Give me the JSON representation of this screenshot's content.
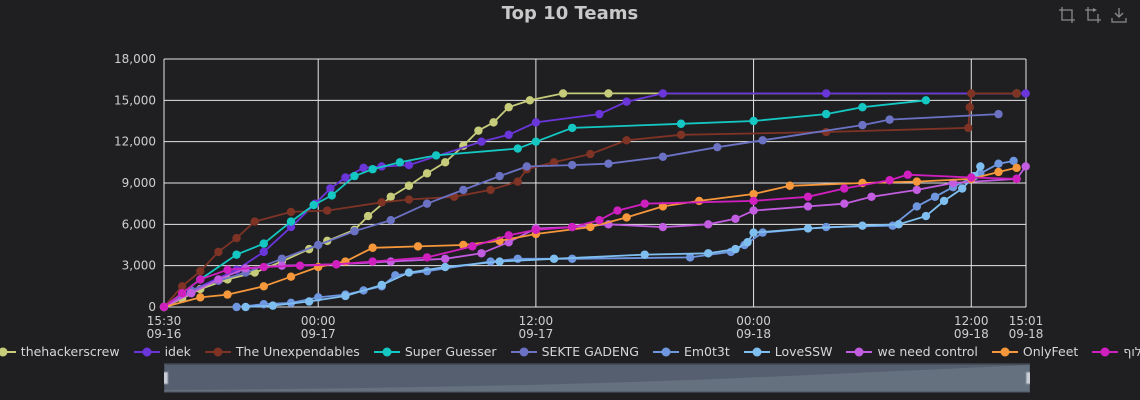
{
  "chart_data": {
    "type": "line",
    "title": "Top 10 Teams",
    "xlabel": "",
    "ylabel": "",
    "x_range": [
      "2022-09-16T15:30",
      "2022-09-18T15:01"
    ],
    "ylim": [
      0,
      18000
    ],
    "y_ticks": [
      "0",
      "3,000",
      "6,000",
      "9,000",
      "12,000",
      "15,000",
      "18,000"
    ],
    "x_ticks": [
      {
        "t": "2022-09-16T15:30",
        "time": "15:30",
        "date": "09-16"
      },
      {
        "t": "2022-09-17T00:00",
        "time": "00:00",
        "date": "09-17"
      },
      {
        "t": "2022-09-17T12:00",
        "time": "12:00",
        "date": "09-17"
      },
      {
        "t": "2022-09-18T00:00",
        "time": "00:00",
        "date": "09-18"
      },
      {
        "t": "2022-09-18T12:00",
        "time": "12:00",
        "date": "09-18"
      },
      {
        "t": "2022-09-18T15:01",
        "time": "15:01",
        "date": "09-18"
      }
    ],
    "grid": true,
    "legend_position": "bottom",
    "series": [
      {
        "name": "thehackerscrew",
        "color": "#c6cc7a",
        "points": [
          [
            "2022-09-16T15:30",
            0
          ],
          [
            "2022-09-16T16:30",
            600
          ],
          [
            "2022-09-16T17:30",
            1300
          ],
          [
            "2022-09-16T19:00",
            2000
          ],
          [
            "2022-09-16T20:30",
            2500
          ],
          [
            "2022-09-16T22:00",
            3300
          ],
          [
            "2022-09-16T23:30",
            4200
          ],
          [
            "2022-09-17T00:30",
            4800
          ],
          [
            "2022-09-17T02:00",
            5600
          ],
          [
            "2022-09-17T02:45",
            6600
          ],
          [
            "2022-09-17T04:00",
            8000
          ],
          [
            "2022-09-17T05:00",
            8800
          ],
          [
            "2022-09-17T06:00",
            9700
          ],
          [
            "2022-09-17T07:00",
            10500
          ],
          [
            "2022-09-17T08:00",
            11700
          ],
          [
            "2022-09-17T08:50",
            12800
          ],
          [
            "2022-09-17T09:40",
            13400
          ],
          [
            "2022-09-17T10:30",
            14500
          ],
          [
            "2022-09-17T11:40",
            15000
          ],
          [
            "2022-09-17T13:30",
            15500
          ],
          [
            "2022-09-17T16:00",
            15500
          ],
          [
            "2022-09-18T14:30",
            15500
          ]
        ]
      },
      {
        "name": "idek",
        "color": "#6a35d9",
        "points": [
          [
            "2022-09-16T15:30",
            0
          ],
          [
            "2022-09-16T17:00",
            1200
          ],
          [
            "2022-09-16T19:30",
            2700
          ],
          [
            "2022-09-16T21:00",
            4000
          ],
          [
            "2022-09-16T22:30",
            5800
          ],
          [
            "2022-09-16T23:50",
            7500
          ],
          [
            "2022-09-17T00:40",
            8600
          ],
          [
            "2022-09-17T01:30",
            9400
          ],
          [
            "2022-09-17T02:30",
            10100
          ],
          [
            "2022-09-17T03:30",
            10200
          ],
          [
            "2022-09-17T05:00",
            10300
          ],
          [
            "2022-09-17T09:00",
            12000
          ],
          [
            "2022-09-17T10:30",
            12500
          ],
          [
            "2022-09-17T12:00",
            13400
          ],
          [
            "2022-09-17T15:30",
            14000
          ],
          [
            "2022-09-17T17:00",
            14900
          ],
          [
            "2022-09-17T19:00",
            15500
          ],
          [
            "2022-09-18T04:00",
            15500
          ],
          [
            "2022-09-18T15:00",
            15500
          ]
        ]
      },
      {
        "name": "The Unexpendables",
        "color": "#7e3325",
        "points": [
          [
            "2022-09-16T15:30",
            0
          ],
          [
            "2022-09-16T16:30",
            1500
          ],
          [
            "2022-09-16T17:30",
            2600
          ],
          [
            "2022-09-16T18:30",
            4000
          ],
          [
            "2022-09-16T19:30",
            5000
          ],
          [
            "2022-09-16T20:30",
            6200
          ],
          [
            "2022-09-16T22:30",
            6900
          ],
          [
            "2022-09-17T00:30",
            7000
          ],
          [
            "2022-09-17T03:30",
            7600
          ],
          [
            "2022-09-17T05:00",
            7800
          ],
          [
            "2022-09-17T07:30",
            8000
          ],
          [
            "2022-09-17T09:30",
            8500
          ],
          [
            "2022-09-17T11:00",
            9100
          ],
          [
            "2022-09-17T11:30",
            10000
          ],
          [
            "2022-09-17T13:00",
            10500
          ],
          [
            "2022-09-17T15:00",
            11100
          ],
          [
            "2022-09-17T17:00",
            12100
          ],
          [
            "2022-09-17T20:00",
            12500
          ],
          [
            "2022-09-18T04:00",
            12700
          ],
          [
            "2022-09-18T11:50",
            13000
          ],
          [
            "2022-09-18T11:55",
            14500
          ],
          [
            "2022-09-18T12:00",
            15500
          ],
          [
            "2022-09-18T14:30",
            15500
          ]
        ]
      },
      {
        "name": "Super Guesser",
        "color": "#15c7c2",
        "points": [
          [
            "2022-09-16T15:30",
            0
          ],
          [
            "2022-09-16T17:30",
            2000
          ],
          [
            "2022-09-16T19:30",
            3800
          ],
          [
            "2022-09-16T21:00",
            4600
          ],
          [
            "2022-09-16T22:30",
            6200
          ],
          [
            "2022-09-16T23:45",
            7400
          ],
          [
            "2022-09-17T00:45",
            8100
          ],
          [
            "2022-09-17T02:00",
            9500
          ],
          [
            "2022-09-17T03:00",
            10000
          ],
          [
            "2022-09-17T04:30",
            10500
          ],
          [
            "2022-09-17T06:30",
            11000
          ],
          [
            "2022-09-17T11:00",
            11500
          ],
          [
            "2022-09-17T12:00",
            12000
          ],
          [
            "2022-09-17T14:00",
            13000
          ],
          [
            "2022-09-17T20:00",
            13300
          ],
          [
            "2022-09-18T00:00",
            13500
          ],
          [
            "2022-09-18T04:00",
            14000
          ],
          [
            "2022-09-18T06:00",
            14500
          ],
          [
            "2022-09-18T09:30",
            15000
          ]
        ]
      },
      {
        "name": "SEKTE GADENG",
        "color": "#6b72c4",
        "points": [
          [
            "2022-09-16T15:30",
            0
          ],
          [
            "2022-09-16T17:00",
            1200
          ],
          [
            "2022-09-16T18:30",
            1900
          ],
          [
            "2022-09-16T20:00",
            2500
          ],
          [
            "2022-09-16T22:00",
            3500
          ],
          [
            "2022-09-17T00:00",
            4500
          ],
          [
            "2022-09-17T02:00",
            5500
          ],
          [
            "2022-09-17T04:00",
            6300
          ],
          [
            "2022-09-17T06:00",
            7500
          ],
          [
            "2022-09-17T08:00",
            8500
          ],
          [
            "2022-09-17T10:00",
            9500
          ],
          [
            "2022-09-17T11:30",
            10200
          ],
          [
            "2022-09-17T14:00",
            10300
          ],
          [
            "2022-09-17T16:00",
            10400
          ],
          [
            "2022-09-17T19:00",
            10900
          ],
          [
            "2022-09-17T22:00",
            11600
          ],
          [
            "2022-09-18T00:30",
            12100
          ],
          [
            "2022-09-18T06:00",
            13200
          ],
          [
            "2022-09-18T07:30",
            13600
          ],
          [
            "2022-09-18T13:30",
            14000
          ]
        ]
      },
      {
        "name": "Em0t3t",
        "color": "#6f97e0",
        "points": [
          [
            "2022-09-16T19:30",
            0
          ],
          [
            "2022-09-16T21:00",
            200
          ],
          [
            "2022-09-16T22:30",
            300
          ],
          [
            "2022-09-17T00:00",
            700
          ],
          [
            "2022-09-17T01:30",
            900
          ],
          [
            "2022-09-17T02:30",
            1200
          ],
          [
            "2022-09-17T03:30",
            1500
          ],
          [
            "2022-09-17T04:15",
            2300
          ],
          [
            "2022-09-17T06:00",
            2600
          ],
          [
            "2022-09-17T09:30",
            3300
          ],
          [
            "2022-09-17T11:00",
            3500
          ],
          [
            "2022-09-17T14:00",
            3500
          ],
          [
            "2022-09-17T20:30",
            3600
          ],
          [
            "2022-09-17T22:45",
            4000
          ],
          [
            "2022-09-17T23:30",
            4500
          ],
          [
            "2022-09-18T00:30",
            5400
          ],
          [
            "2022-09-18T04:00",
            5800
          ],
          [
            "2022-09-18T07:40",
            5900
          ],
          [
            "2022-09-18T09:00",
            7300
          ],
          [
            "2022-09-18T10:00",
            8000
          ],
          [
            "2022-09-18T11:00",
            8700
          ],
          [
            "2022-09-18T12:30",
            9700
          ],
          [
            "2022-09-18T13:30",
            10400
          ],
          [
            "2022-09-18T14:20",
            10600
          ]
        ]
      },
      {
        "name": "LoveSSW",
        "color": "#7fbff0",
        "points": [
          [
            "2022-09-16T20:00",
            0
          ],
          [
            "2022-09-16T21:30",
            100
          ],
          [
            "2022-09-16T23:30",
            400
          ],
          [
            "2022-09-17T01:30",
            800
          ],
          [
            "2022-09-17T03:30",
            1600
          ],
          [
            "2022-09-17T05:00",
            2500
          ],
          [
            "2022-09-17T07:00",
            2900
          ],
          [
            "2022-09-17T10:00",
            3300
          ],
          [
            "2022-09-17T13:00",
            3500
          ],
          [
            "2022-09-17T18:00",
            3800
          ],
          [
            "2022-09-17T21:30",
            3900
          ],
          [
            "2022-09-17T23:00",
            4200
          ],
          [
            "2022-09-17T23:40",
            4700
          ],
          [
            "2022-09-18T00:00",
            5400
          ],
          [
            "2022-09-18T03:00",
            5700
          ],
          [
            "2022-09-18T06:00",
            5900
          ],
          [
            "2022-09-18T08:00",
            6000
          ],
          [
            "2022-09-18T09:30",
            6600
          ],
          [
            "2022-09-18T10:30",
            7700
          ],
          [
            "2022-09-18T11:30",
            8600
          ],
          [
            "2022-09-18T12:10",
            9500
          ],
          [
            "2022-09-18T12:30",
            10200
          ]
        ]
      },
      {
        "name": "we need control",
        "color": "#c25ce0",
        "points": [
          [
            "2022-09-16T15:30",
            0
          ],
          [
            "2022-09-16T17:00",
            1000
          ],
          [
            "2022-09-16T18:30",
            2000
          ],
          [
            "2022-09-16T20:00",
            2800
          ],
          [
            "2022-09-16T22:00",
            3000
          ],
          [
            "2022-09-17T01:00",
            3100
          ],
          [
            "2022-09-17T04:00",
            3300
          ],
          [
            "2022-09-17T07:00",
            3500
          ],
          [
            "2022-09-17T09:00",
            3900
          ],
          [
            "2022-09-17T10:30",
            4700
          ],
          [
            "2022-09-17T12:00",
            5700
          ],
          [
            "2022-09-17T14:00",
            5800
          ],
          [
            "2022-09-17T16:00",
            6000
          ],
          [
            "2022-09-17T19:00",
            5800
          ],
          [
            "2022-09-17T21:30",
            6000
          ],
          [
            "2022-09-17T23:00",
            6400
          ],
          [
            "2022-09-18T00:00",
            7000
          ],
          [
            "2022-09-18T03:00",
            7300
          ],
          [
            "2022-09-18T05:00",
            7500
          ],
          [
            "2022-09-18T06:30",
            8000
          ],
          [
            "2022-09-18T09:00",
            8500
          ],
          [
            "2022-09-18T11:00",
            9000
          ],
          [
            "2022-09-18T14:30",
            9300
          ],
          [
            "2022-09-18T15:00",
            10200
          ]
        ]
      },
      {
        "name": "OnlyFeet",
        "color": "#f5973a",
        "points": [
          [
            "2022-09-16T15:30",
            0
          ],
          [
            "2022-09-16T17:30",
            700
          ],
          [
            "2022-09-16T19:00",
            900
          ],
          [
            "2022-09-16T21:00",
            1500
          ],
          [
            "2022-09-16T22:30",
            2200
          ],
          [
            "2022-09-17T00:00",
            2900
          ],
          [
            "2022-09-17T01:30",
            3300
          ],
          [
            "2022-09-17T03:00",
            4300
          ],
          [
            "2022-09-17T05:30",
            4400
          ],
          [
            "2022-09-17T08:00",
            4500
          ],
          [
            "2022-09-17T10:00",
            4800
          ],
          [
            "2022-09-17T12:00",
            5300
          ],
          [
            "2022-09-17T15:00",
            5800
          ],
          [
            "2022-09-17T17:00",
            6500
          ],
          [
            "2022-09-17T19:00",
            7300
          ],
          [
            "2022-09-17T21:00",
            7700
          ],
          [
            "2022-09-18T00:00",
            8200
          ],
          [
            "2022-09-18T02:00",
            8800
          ],
          [
            "2022-09-18T06:00",
            9000
          ],
          [
            "2022-09-18T09:00",
            9100
          ],
          [
            "2022-09-18T12:00",
            9300
          ],
          [
            "2022-09-18T13:30",
            9800
          ],
          [
            "2022-09-18T14:30",
            10100
          ]
        ]
      },
      {
        "name": "אלוף",
        "color": "#cf1fbf",
        "points": [
          [
            "2022-09-16T15:30",
            0
          ],
          [
            "2022-09-16T16:30",
            1000
          ],
          [
            "2022-09-16T17:30",
            2000
          ],
          [
            "2022-09-16T19:00",
            2700
          ],
          [
            "2022-09-16T21:00",
            2900
          ],
          [
            "2022-09-16T23:00",
            3000
          ],
          [
            "2022-09-17T01:00",
            3100
          ],
          [
            "2022-09-17T03:00",
            3300
          ],
          [
            "2022-09-17T06:00",
            3600
          ],
          [
            "2022-09-17T08:30",
            4400
          ],
          [
            "2022-09-17T10:30",
            5200
          ],
          [
            "2022-09-17T12:00",
            5600
          ],
          [
            "2022-09-17T14:00",
            5800
          ],
          [
            "2022-09-17T15:30",
            6300
          ],
          [
            "2022-09-17T16:30",
            7000
          ],
          [
            "2022-09-17T18:00",
            7500
          ],
          [
            "2022-09-18T00:00",
            7700
          ],
          [
            "2022-09-18T03:00",
            8000
          ],
          [
            "2022-09-18T05:00",
            8600
          ],
          [
            "2022-09-18T07:30",
            9200
          ],
          [
            "2022-09-18T08:30",
            9600
          ],
          [
            "2022-09-18T12:00",
            9400
          ],
          [
            "2022-09-18T14:30",
            9300
          ]
        ]
      }
    ]
  },
  "toolbox": {
    "zoom_icon": "zoom-icon",
    "zoom_reset_icon": "zoom-reset-icon",
    "save_icon": "save-image-icon"
  },
  "colors": {
    "background": "#1f1f22",
    "grid": "#e6e6e6",
    "text": "#cfcfcf"
  }
}
